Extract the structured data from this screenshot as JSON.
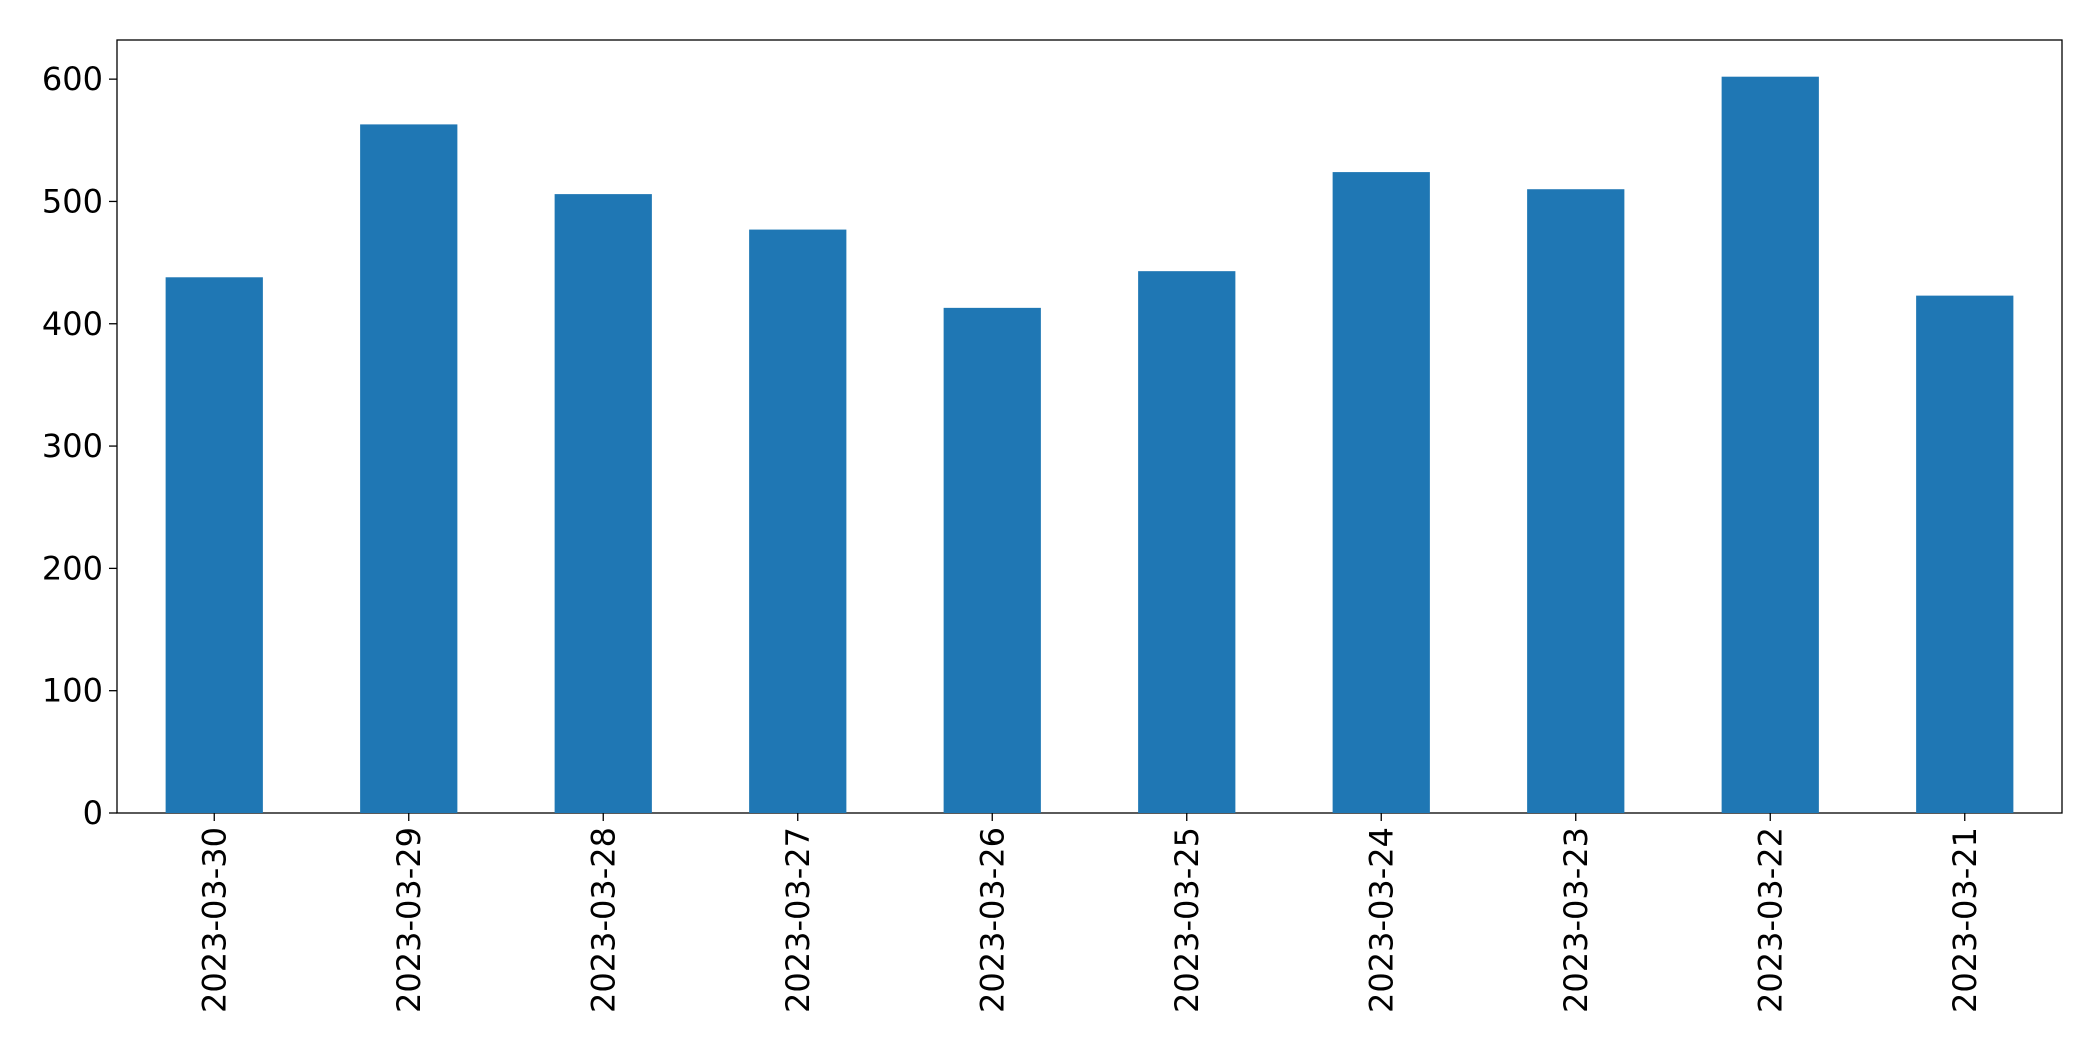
{
  "chart_data": {
    "type": "bar",
    "categories": [
      "2023-03-30",
      "2023-03-29",
      "2023-03-28",
      "2023-03-27",
      "2023-03-26",
      "2023-03-25",
      "2023-03-24",
      "2023-03-23",
      "2023-03-22",
      "2023-03-21"
    ],
    "values": [
      438,
      563,
      506,
      477,
      413,
      443,
      524,
      510,
      602,
      423
    ],
    "color": "#1f77b4",
    "ylim": [
      0,
      632
    ],
    "yticks": [
      0,
      100,
      200,
      300,
      400,
      500,
      600
    ],
    "grid": false
  }
}
